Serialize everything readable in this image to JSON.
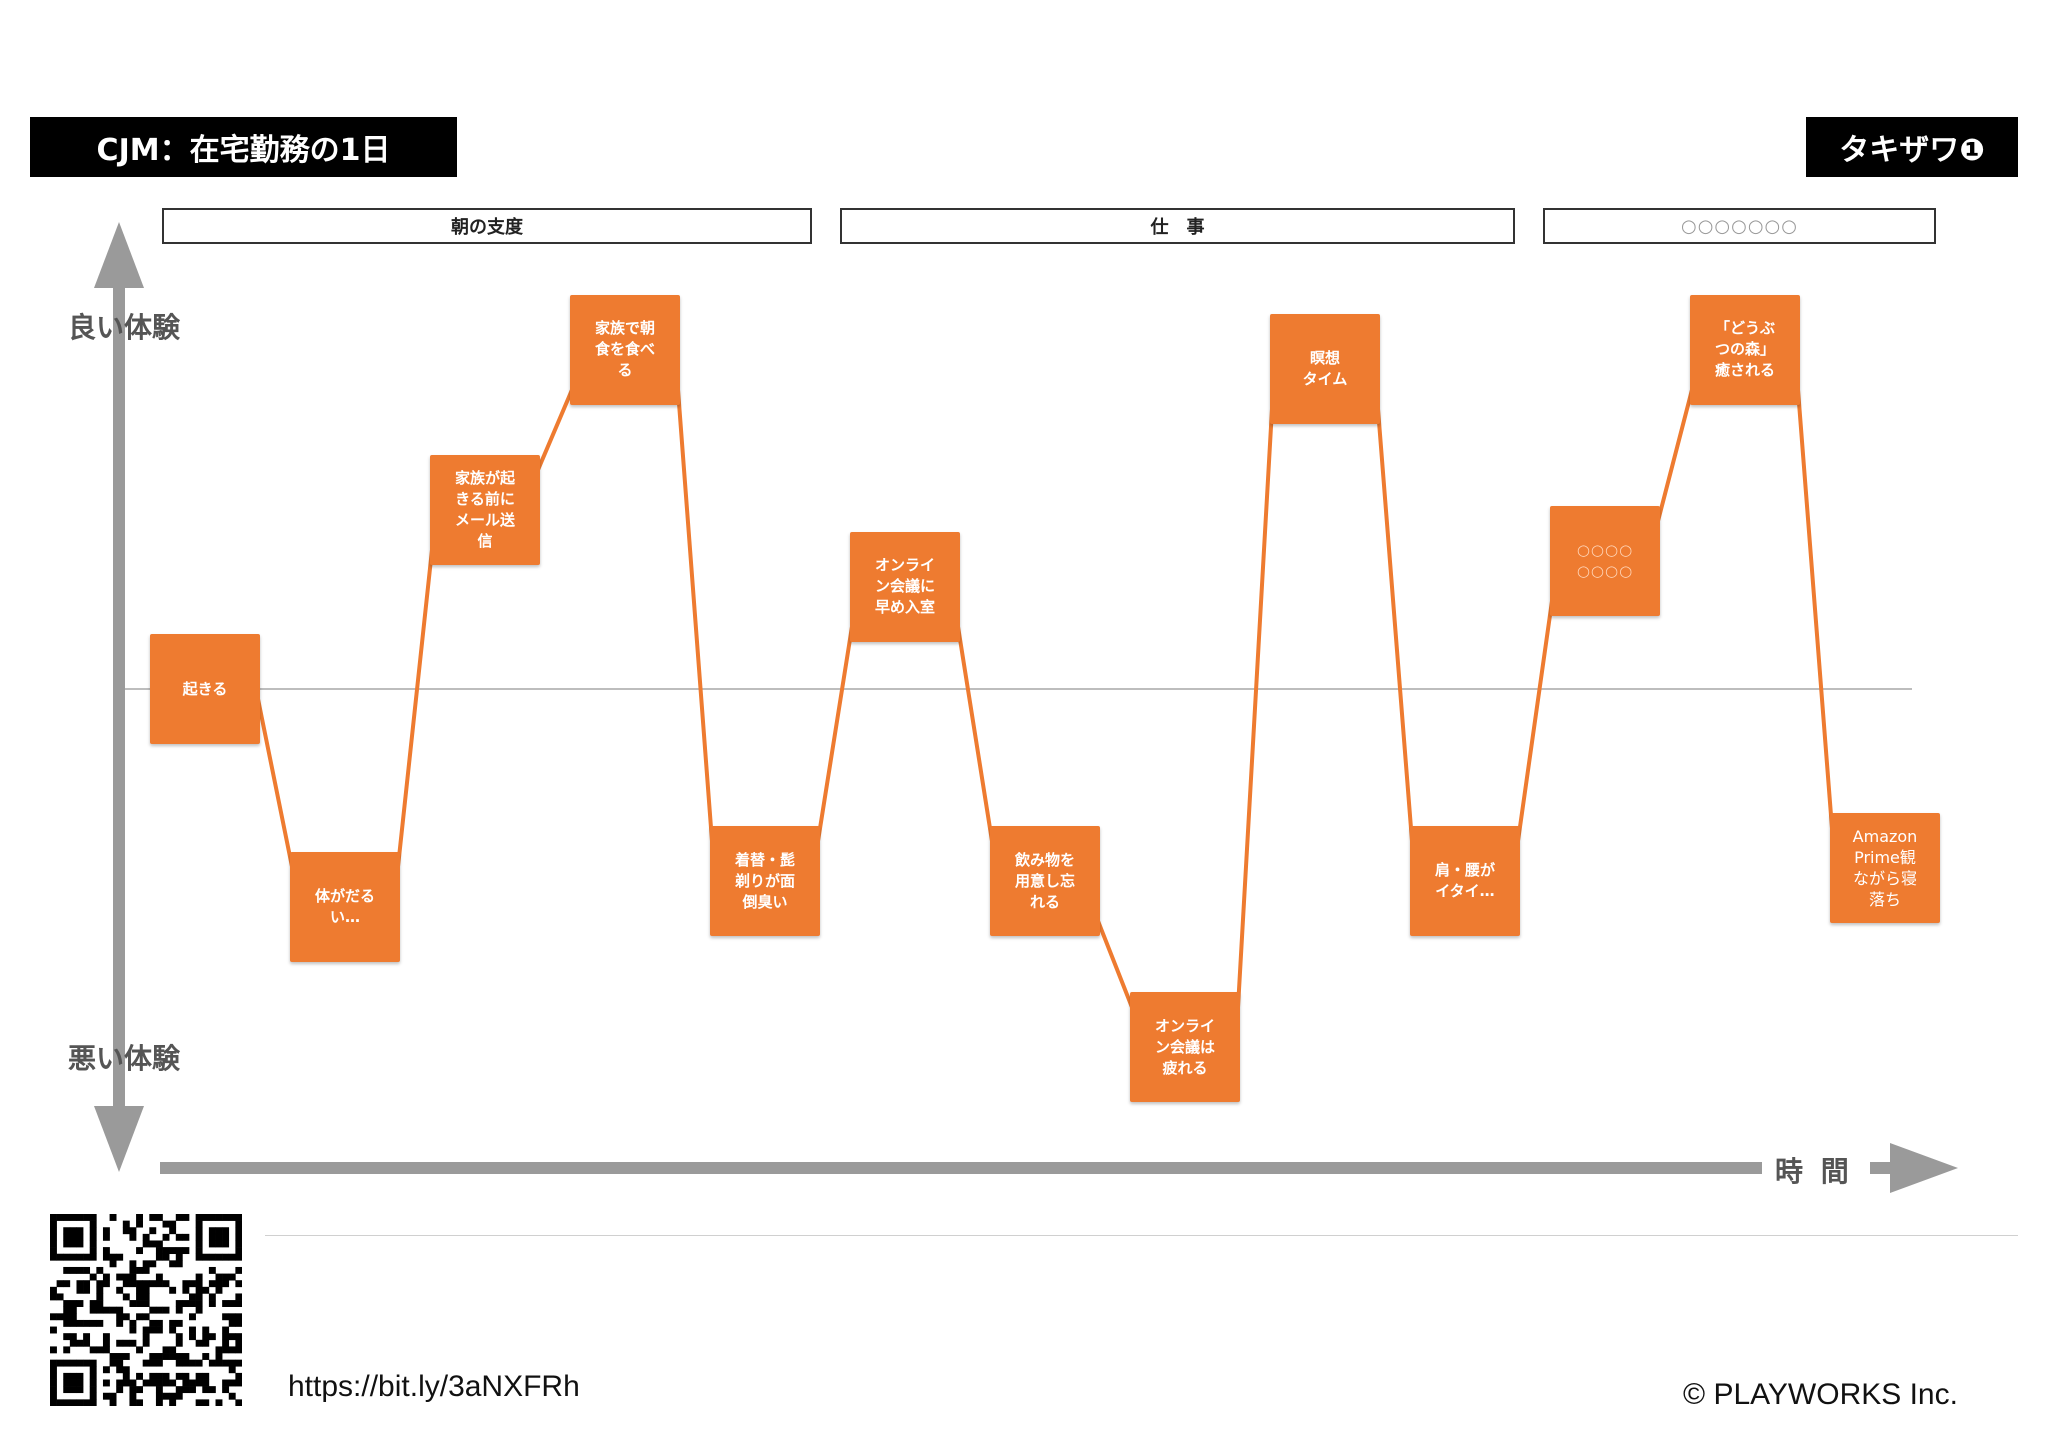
{
  "header": {
    "title": "CJM：在宅勤務の1日",
    "author": "タキザワ❶"
  },
  "phases": [
    {
      "label": "朝の支度"
    },
    {
      "label": "仕　事"
    },
    {
      "label": "○○○○○○○"
    }
  ],
  "axes": {
    "good": "良い体験",
    "bad": "悪い体験",
    "time": "時 間"
  },
  "chart_data": {
    "type": "line",
    "title": "",
    "xlabel": "時 間",
    "ylabel_top": "良い体験",
    "ylabel_bottom": "悪い体験",
    "ylim": [
      -3,
      3
    ],
    "points": [
      {
        "label": "起きる",
        "value": 0.0
      },
      {
        "label": "体がだる\nい…",
        "value": -1.7
      },
      {
        "label": "家族が起\nきる前に\nメール送\n信",
        "value": 1.4
      },
      {
        "label": "家族で朝\n食を食べ\nる",
        "value": 2.65
      },
      {
        "label": "着替・髭\n剃りが面\n倒臭い",
        "value": -1.5
      },
      {
        "label": "オンライ\nン会議に\n早め入室",
        "value": 0.8
      },
      {
        "label": "飲み物を\n用意し忘\nれる",
        "value": -1.5
      },
      {
        "label": "オンライ\nン会議は\n疲れる",
        "value": -2.8
      },
      {
        "label": "瞑想\nタイム",
        "value": 2.5
      },
      {
        "label": "肩・腰が\nイタイ…",
        "value": -1.5
      },
      {
        "label": "○○○○\n○○○○",
        "value": 1.0
      },
      {
        "label": "「どうぶ\nつの森」\n癒される",
        "value": 2.65
      },
      {
        "label": "Amazon\nPrime観\nながら寝\n落ち",
        "value": -1.4
      }
    ],
    "colors": {
      "card": "#ee7b30",
      "line": "#ee7b30",
      "axis": "#9a9a9a",
      "baseline": "#bdbdbd"
    }
  },
  "footer": {
    "url": "https://bit.ly/3aNXFRh",
    "copyright": "© PLAYWORKS Inc."
  },
  "icons": {
    "qr": "qr-code-icon",
    "arrow_up": "arrow-up-icon",
    "arrow_down": "arrow-down-icon",
    "arrow_right": "arrow-right-icon"
  }
}
